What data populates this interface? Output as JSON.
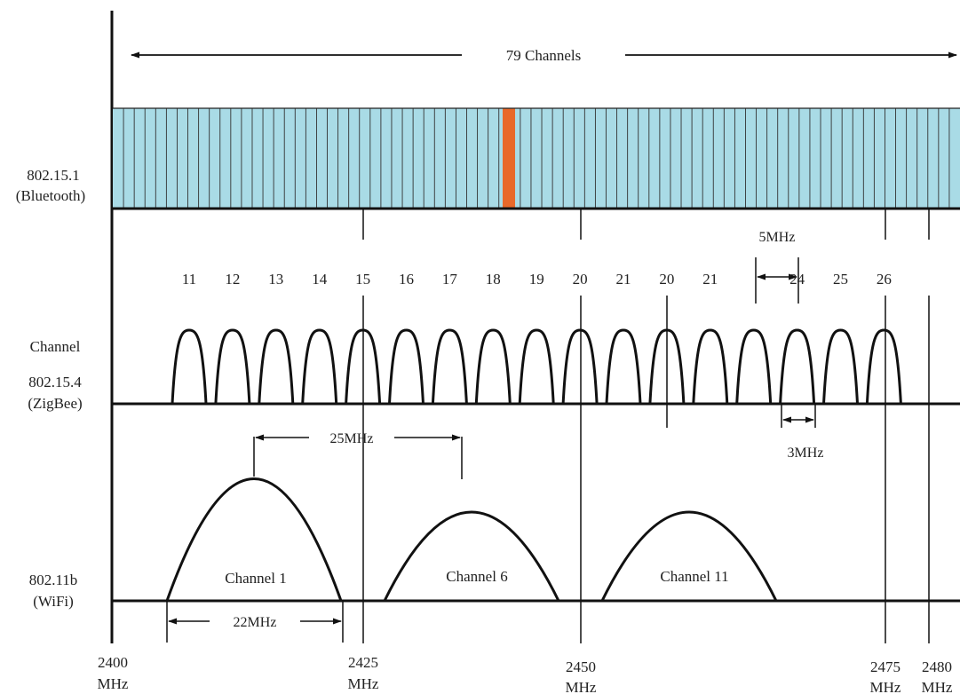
{
  "header": {
    "channels_label": "79 Channels"
  },
  "bands": {
    "bluetooth": {
      "name": "802.15.1",
      "sub": "(Bluetooth)",
      "channel_count": 79,
      "highlight_index": 39,
      "fill_color": "#a9dbe6",
      "highlight_color": "#e8692a"
    },
    "zigbee": {
      "channel_word": "Channel",
      "name": "802.15.4",
      "sub": "(ZigBee)",
      "channel_labels": [
        "11",
        "12",
        "13",
        "14",
        "15",
        "16",
        "17",
        "18",
        "19",
        "20",
        "21",
        "20",
        "21",
        "",
        "24",
        "25",
        "26"
      ]
    },
    "wifi": {
      "name": "802.11b",
      "sub": "(WiFi)",
      "channels": [
        "Channel 1",
        "Channel 6",
        "Channel 11"
      ]
    }
  },
  "annotations": {
    "bt_spacing": "5MHz",
    "zigbee_width": "3MHz",
    "wifi_spacing": "25MHz",
    "wifi_width": "22MHz"
  },
  "frequency_axis": {
    "ticks": [
      {
        "value": "2400",
        "unit": "MHz"
      },
      {
        "value": "2425",
        "unit": "MHz"
      },
      {
        "value": "2450",
        "unit": "MHz"
      },
      {
        "value": "2475",
        "unit": "MHz"
      },
      {
        "value": "2480",
        "unit": "MHz"
      }
    ]
  }
}
